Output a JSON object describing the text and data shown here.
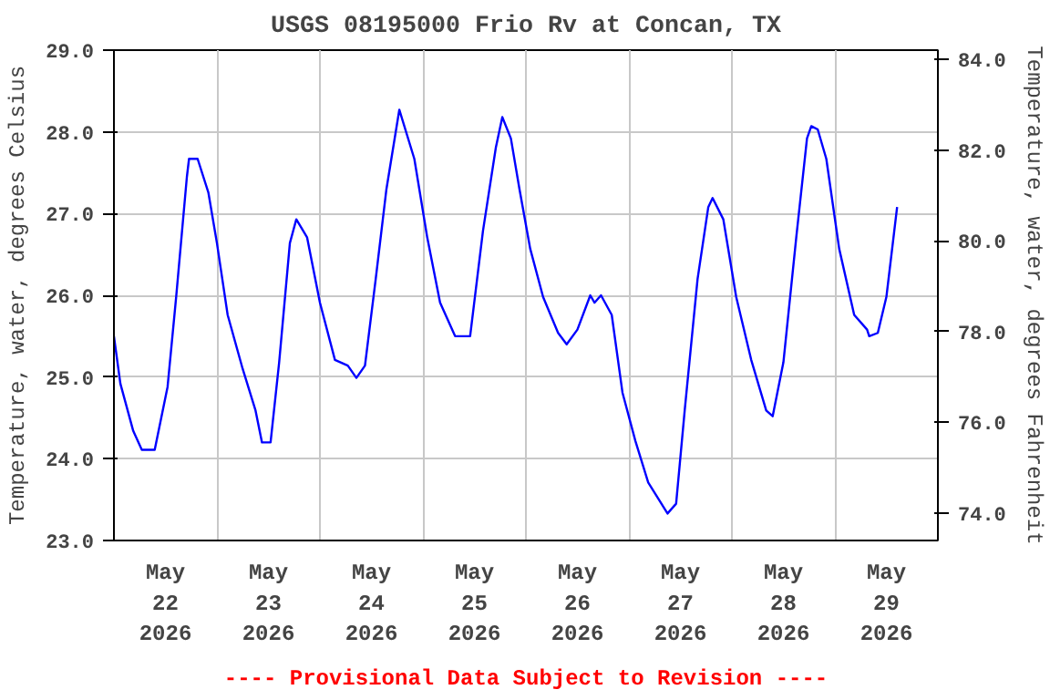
{
  "chart_data": {
    "type": "line",
    "title": "USGS 08195000 Frio Rv at Concan, TX",
    "ylabel": "Temperature, water, degrees Celsius",
    "y2label": "Temperature, water, degrees Fahrenheit",
    "annotations": [
      "---- Provisional Data Subject to Revision ----"
    ],
    "x": [
      "2026-05-22T00:00",
      "2026-05-22T01:30",
      "2026-05-22T04:30",
      "2026-05-22T06:30",
      "2026-05-22T09:30",
      "2026-05-22T12:30",
      "2026-05-22T14:30",
      "2026-05-22T17:00",
      "2026-05-22T17:30",
      "2026-05-22T19:30",
      "2026-05-22T22:00",
      "2026-05-23T00:00",
      "2026-05-23T02:30",
      "2026-05-23T06:00",
      "2026-05-23T09:00",
      "2026-05-23T10:30",
      "2026-05-23T12:30",
      "2026-05-23T14:30",
      "2026-05-23T17:00",
      "2026-05-23T18:30",
      "2026-05-23T21:00",
      "2026-05-24T00:00",
      "2026-05-24T03:30",
      "2026-05-24T06:30",
      "2026-05-24T08:30",
      "2026-05-24T10:30",
      "2026-05-24T13:00",
      "2026-05-24T15:30",
      "2026-05-24T18:30",
      "2026-05-24T22:00",
      "2026-05-25T01:00",
      "2026-05-25T04:00",
      "2026-05-25T07:30",
      "2026-05-25T11:00",
      "2026-05-25T14:00",
      "2026-05-25T17:00",
      "2026-05-25T18:30",
      "2026-05-25T20:30",
      "2026-05-25T22:30",
      "2026-05-26T01:00",
      "2026-05-26T04:00",
      "2026-05-26T07:30",
      "2026-05-26T09:30",
      "2026-05-26T12:00",
      "2026-05-26T15:00",
      "2026-05-26T16:00",
      "2026-05-26T17:30",
      "2026-05-26T20:00",
      "2026-05-26T22:30",
      "2026-05-27T01:30",
      "2026-05-27T04:30",
      "2026-05-27T09:00",
      "2026-05-27T11:00",
      "2026-05-27T13:00",
      "2026-05-27T16:00",
      "2026-05-27T18:30",
      "2026-05-27T19:30",
      "2026-05-27T22:00",
      "2026-05-28T01:00",
      "2026-05-28T04:30",
      "2026-05-28T08:00",
      "2026-05-28T09:30",
      "2026-05-28T12:00",
      "2026-05-28T15:00",
      "2026-05-28T17:30",
      "2026-05-28T18:30",
      "2026-05-28T20:00",
      "2026-05-28T22:00",
      "2026-05-29T01:00",
      "2026-05-29T04:30",
      "2026-05-29T07:30",
      "2026-05-29T08:00",
      "2026-05-29T10:00",
      "2026-05-29T12:00",
      "2026-05-29T14:30"
    ],
    "series": [
      {
        "color": "#0000ff",
        "values": [
          25.5,
          24.92,
          24.34,
          24.11,
          24.11,
          24.88,
          25.98,
          27.45,
          27.67,
          27.67,
          27.26,
          26.64,
          25.76,
          25.1,
          24.59,
          24.2,
          24.2,
          25.18,
          26.64,
          26.93,
          26.71,
          25.91,
          25.21,
          25.14,
          24.99,
          25.14,
          26.2,
          27.3,
          28.27,
          27.67,
          26.71,
          25.91,
          25.5,
          25.5,
          26.79,
          27.81,
          28.18,
          27.92,
          27.3,
          26.57,
          25.98,
          25.54,
          25.4,
          25.58,
          26.0,
          25.91,
          26.0,
          25.76,
          24.81,
          24.22,
          23.71,
          23.33,
          23.45,
          24.59,
          26.2,
          27.08,
          27.19,
          26.93,
          25.98,
          25.21,
          24.59,
          24.52,
          25.18,
          26.71,
          27.92,
          28.07,
          28.03,
          27.67,
          26.57,
          25.76,
          25.58,
          25.5,
          25.54,
          25.98,
          27.08
        ]
      }
    ],
    "xlim": [
      "2026-05-22T00:00",
      "2026-05-30T00:00"
    ],
    "xticks": [
      {
        "value": "2026-05-22T00:00",
        "label": null
      },
      {
        "value": "2026-05-22T12:00",
        "label": "May\n22\n2026"
      },
      {
        "value": "2026-05-23T00:00",
        "label": null
      },
      {
        "value": "2026-05-23T12:00",
        "label": "May\n23\n2026"
      },
      {
        "value": "2026-05-24T00:00",
        "label": null
      },
      {
        "value": "2026-05-24T12:00",
        "label": "May\n24\n2026"
      },
      {
        "value": "2026-05-25T00:00",
        "label": null
      },
      {
        "value": "2026-05-25T12:00",
        "label": "May\n25\n2026"
      },
      {
        "value": "2026-05-26T00:00",
        "label": null
      },
      {
        "value": "2026-05-26T12:00",
        "label": "May\n26\n2026"
      },
      {
        "value": "2026-05-27T00:00",
        "label": null
      },
      {
        "value": "2026-05-27T12:00",
        "label": "May\n27\n2026"
      },
      {
        "value": "2026-05-28T00:00",
        "label": null
      },
      {
        "value": "2026-05-28T12:00",
        "label": "May\n28\n2026"
      },
      {
        "value": "2026-05-29T00:00",
        "label": null
      },
      {
        "value": "2026-05-29T12:00",
        "label": "May\n29\n2026"
      },
      {
        "value": "2026-05-30T00:00",
        "label": null
      }
    ],
    "ylim": [
      23.0,
      29.0
    ],
    "yticks": [
      {
        "value": 23,
        "label": "23.0"
      },
      {
        "value": 24,
        "label": "24.0"
      },
      {
        "value": 25,
        "label": "25.0"
      },
      {
        "value": 26,
        "label": "26.0"
      },
      {
        "value": 27,
        "label": "27.0"
      },
      {
        "value": 28,
        "label": "28.0"
      },
      {
        "value": 29,
        "label": "29.0"
      }
    ],
    "y2lim": [
      73.4,
      84.2
    ],
    "y2ticks": [
      {
        "value": 74,
        "label": "74.0"
      },
      {
        "value": 76,
        "label": "76.0"
      },
      {
        "value": 78,
        "label": "78.0"
      },
      {
        "value": 80,
        "label": "80.0"
      },
      {
        "value": 82,
        "label": "82.0"
      },
      {
        "value": 84,
        "label": "84.0"
      }
    ],
    "grid": true
  }
}
